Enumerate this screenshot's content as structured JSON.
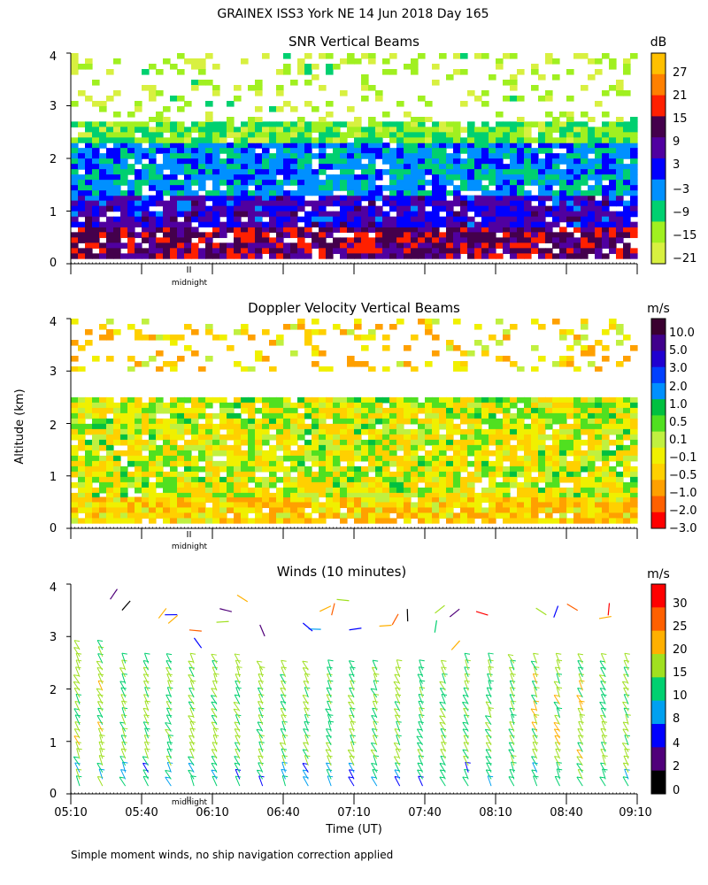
{
  "title": "GRAINEX ISS3 York NE  14 Jun 2018 Day 165",
  "footnote": "Simple moment winds, no ship navigation correction applied",
  "panels": [
    {
      "title": "SNR Vertical Beams",
      "unit": "dB"
    },
    {
      "title": "Doppler Velocity Vertical Beams",
      "unit": "m/s"
    },
    {
      "title": "Winds (10 minutes)",
      "unit": "m/s"
    }
  ],
  "chart_data": [
    {
      "type": "heatmap",
      "title": "SNR Vertical Beams",
      "ylabel": "Altitude (km)",
      "xlabel": "Time (UT)",
      "x_range": [
        "05:10",
        "09:10"
      ],
      "ylim": [
        0,
        4
      ],
      "y_ticks": [
        "0",
        "1",
        "2",
        "3",
        "4"
      ],
      "midnight_label": "midnight",
      "colorbar_unit": "dB",
      "colorbar_labels": [
        "27",
        "21",
        "15",
        "9",
        "3",
        "−3",
        "−9",
        "−15",
        "−21"
      ],
      "colorbar_colors": [
        "#ffc000",
        "#ff8000",
        "#ff2000",
        "#44004c",
        "#5000a0",
        "#0000ff",
        "#0090ff",
        "#00d070",
        "#a0f020",
        "#d8f040"
      ],
      "layers": [
        {
          "name": "lowest",
          "altitude_km": [
            0.1,
            0.7
          ],
          "snr_db": 12
        },
        {
          "name": "lower",
          "altitude_km": [
            0.7,
            1.3
          ],
          "snr_db": 3
        },
        {
          "name": "middle",
          "altitude_km": [
            1.3,
            2.3
          ],
          "snr_db": -6
        },
        {
          "name": "upper",
          "altitude_km": [
            2.3,
            2.7
          ],
          "snr_db": -16
        },
        {
          "name": "top",
          "altitude_km": [
            2.7,
            4.0
          ],
          "snr_db": -21
        }
      ]
    },
    {
      "type": "heatmap",
      "title": "Doppler Velocity Vertical Beams",
      "ylabel": "Altitude (km)",
      "xlabel": "Time (UT)",
      "x_range": [
        "05:10",
        "09:10"
      ],
      "ylim": [
        0,
        4
      ],
      "y_ticks": [
        "0",
        "1",
        "2",
        "3",
        "4"
      ],
      "midnight_label": "midnight",
      "colorbar_unit": "m/s",
      "colorbar_labels": [
        "10.0",
        "5.0",
        "3.0",
        "2.0",
        "1.0",
        "0.5",
        "0.1",
        "−0.1",
        "−0.5",
        "−1.0",
        "−2.0",
        "−3.0"
      ],
      "colorbar_colors": [
        "#3a0030",
        "#40008c",
        "#2000d0",
        "#0040ff",
        "#0090ff",
        "#00c040",
        "#50e020",
        "#c0f040",
        "#f0f000",
        "#ffd000",
        "#ffa000",
        "#ff6000",
        "#ff0000"
      ],
      "layers": [
        {
          "name": "lowest",
          "altitude_km": [
            0.1,
            0.6
          ],
          "velocity_ms": -0.7
        },
        {
          "name": "main",
          "altitude_km": [
            0.6,
            2.5
          ],
          "velocity_ms": -0.2
        },
        {
          "name": "upper",
          "altitude_km": [
            3.0,
            4.0
          ],
          "velocity_ms": -0.7
        }
      ]
    },
    {
      "type": "barbs",
      "title": "Winds (10 minutes)",
      "ylabel": "Altitude (km)",
      "xlabel": "Time (UT)",
      "x_ticks": [
        "05:10",
        "05:40",
        "06:10",
        "06:40",
        "07:10",
        "07:40",
        "08:10",
        "08:40",
        "09:10"
      ],
      "ylim": [
        0,
        4
      ],
      "y_ticks": [
        "0",
        "1",
        "2",
        "3",
        "4"
      ],
      "midnight_label": "midnight",
      "colorbar_unit": "m/s",
      "colorbar_labels": [
        "30",
        "25",
        "20",
        "15",
        "10",
        "8",
        "4",
        "2",
        "0"
      ],
      "colorbar_colors": [
        "#ff0000",
        "#ff6000",
        "#ffb000",
        "#a0e020",
        "#00d070",
        "#00a0f0",
        "#0000ff",
        "#50007a",
        "#000000"
      ],
      "profiles": [
        {
          "time": "05:10",
          "max_km": 2.8,
          "speed_ms": 17
        },
        {
          "time": "05:40",
          "max_km": 2.5,
          "speed_ms": 16
        },
        {
          "time": "06:10",
          "max_km": 2.5,
          "speed_ms": 16
        },
        {
          "time": "06:40",
          "max_km": 2.4,
          "speed_ms": 15
        },
        {
          "time": "07:10",
          "max_km": 2.4,
          "speed_ms": 15
        },
        {
          "time": "07:40",
          "max_km": 2.4,
          "speed_ms": 15
        },
        {
          "time": "08:10",
          "max_km": 2.6,
          "speed_ms": 16
        },
        {
          "time": "08:40",
          "max_km": 2.6,
          "speed_ms": 17
        },
        {
          "time": "09:10",
          "max_km": 2.6,
          "speed_ms": 17
        }
      ]
    }
  ]
}
